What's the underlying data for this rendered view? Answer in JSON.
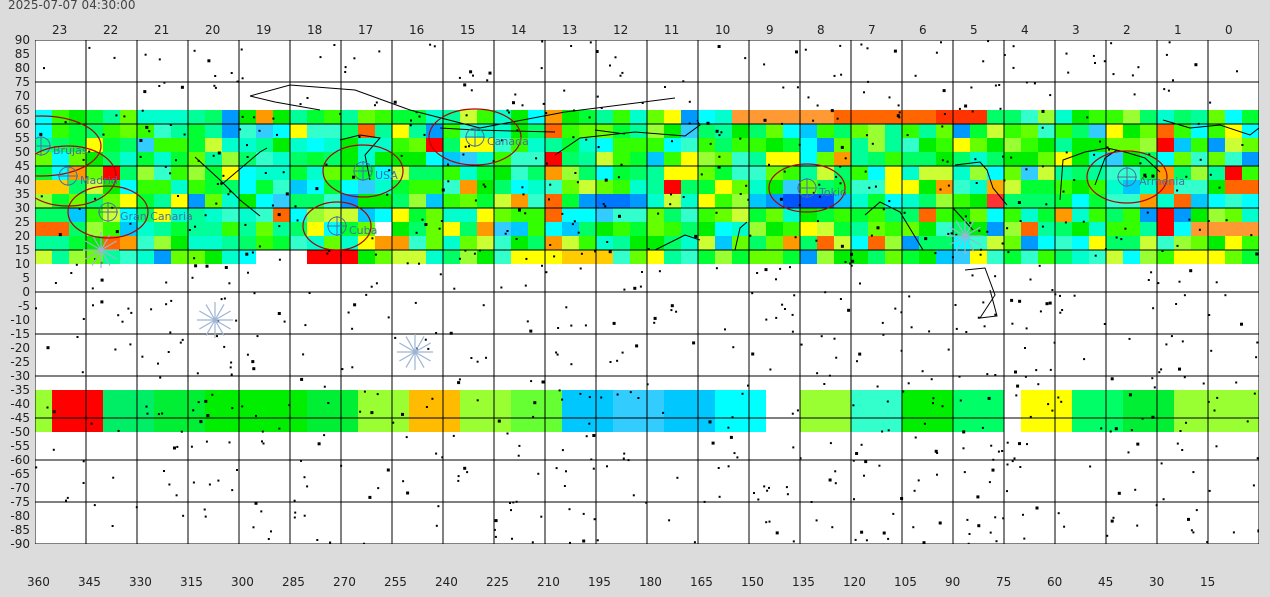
{
  "timestamp": "2025-07-07 04:30:00",
  "hours": [
    "23",
    "22",
    "21",
    "20",
    "19",
    "18",
    "17",
    "16",
    "15",
    "14",
    "13",
    "12",
    "11",
    "10",
    "9",
    "8",
    "7",
    "6",
    "5",
    "4",
    "3",
    "2",
    "1",
    "0"
  ],
  "degrees": [
    "360",
    "345",
    "330",
    "315",
    "300",
    "285",
    "270",
    "255",
    "240",
    "225",
    "210",
    "195",
    "180",
    "165",
    "150",
    "135",
    "120",
    "105",
    "90",
    "75",
    "60",
    "45",
    "30",
    "15"
  ],
  "dec_labels": [
    "90",
    "85",
    "80",
    "75",
    "70",
    "65",
    "60",
    "55",
    "50",
    "45",
    "40",
    "35",
    "30",
    "25",
    "20",
    "15",
    "10",
    "5",
    "0",
    "-5",
    "-10",
    "-15",
    "-20",
    "-25",
    "-30",
    "-35",
    "-40",
    "-45",
    "-50",
    "-55",
    "-60",
    "-65",
    "-70",
    "-75",
    "-80",
    "-85",
    "-90"
  ],
  "locations": [
    {
      "name": "Brujas"
    },
    {
      "name": "Madrid"
    },
    {
      "name": "Gran Canaria"
    },
    {
      "name": "USA"
    },
    {
      "name": "Cuba"
    },
    {
      "name": "Canada"
    },
    {
      "name": "Tokio"
    },
    {
      "name": "Armenia"
    }
  ],
  "colors": {
    "grid": "#000000",
    "background": "#dcdcdc",
    "marker": "#b00000",
    "marker_label": "#4a6fa0"
  },
  "icons": [
    "radiant-star-icon",
    "location-target-icon"
  ]
}
